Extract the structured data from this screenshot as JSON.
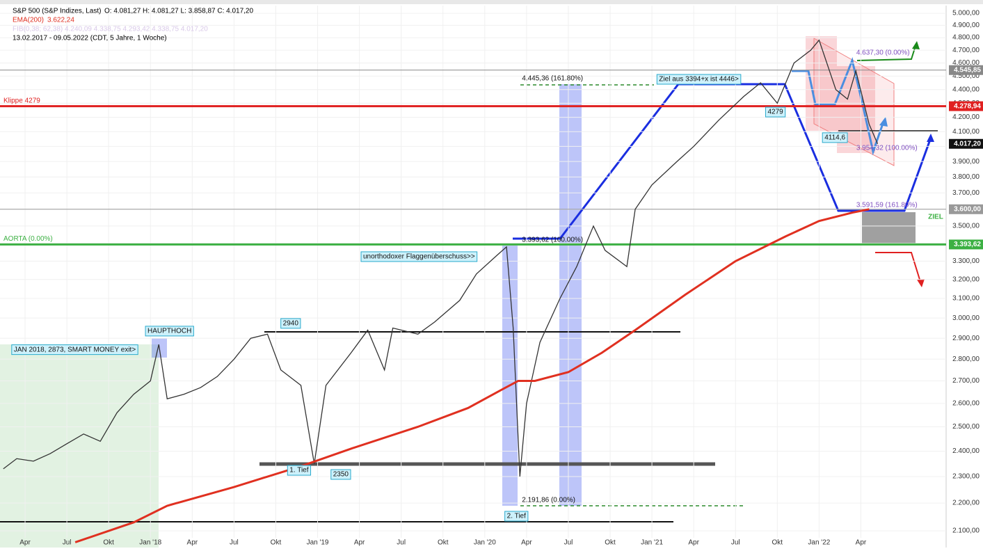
{
  "chart_data": {
    "type": "line",
    "log_scale": true,
    "grid": true,
    "header": {
      "ohlc": "O: 4.081,27  H: 4.081,27  L: 3.858,87  C: 4.017,20",
      "ema_value": "3.622,24",
      "fib": "FIB(0,38; 62,38) 4.240,09  4.338,75  4.293,42  4.338,75  4.017,20",
      "range": "13.02.2017 - 09.05.2022  (CDT, 5 Jahre, 1 Woche)"
    },
    "xlim": [
      2017.1,
      2022.76
    ],
    "ylim": [
      2042,
      5065
    ],
    "xticks": [
      {
        "value": 2017.25,
        "label": "Apr"
      },
      {
        "value": 2017.5,
        "label": "Jul"
      },
      {
        "value": 2017.75,
        "label": "Okt"
      },
      {
        "value": 2018.0,
        "label": "Jan '18"
      },
      {
        "value": 2018.25,
        "label": "Apr"
      },
      {
        "value": 2018.5,
        "label": "Jul"
      },
      {
        "value": 2018.75,
        "label": "Okt"
      },
      {
        "value": 2019.0,
        "label": "Jan '19"
      },
      {
        "value": 2019.25,
        "label": "Apr"
      },
      {
        "value": 2019.5,
        "label": "Jul"
      },
      {
        "value": 2019.75,
        "label": "Okt"
      },
      {
        "value": 2020.0,
        "label": "Jan '20"
      },
      {
        "value": 2020.25,
        "label": "Apr"
      },
      {
        "value": 2020.5,
        "label": "Jul"
      },
      {
        "value": 2020.75,
        "label": "Okt"
      },
      {
        "value": 2021.0,
        "label": "Jan '21"
      },
      {
        "value": 2021.25,
        "label": "Apr"
      },
      {
        "value": 2021.5,
        "label": "Jul"
      },
      {
        "value": 2021.75,
        "label": "Okt"
      },
      {
        "value": 2022.0,
        "label": "Jan '22"
      },
      {
        "value": 2022.25,
        "label": "Apr"
      }
    ],
    "yticks": [
      {
        "value": 2100,
        "label": "2.100,00"
      },
      {
        "value": 2200,
        "label": "2.200,00"
      },
      {
        "value": 2300,
        "label": "2.300,00"
      },
      {
        "value": 2400,
        "label": "2.400,00"
      },
      {
        "value": 2500,
        "label": "2.500,00"
      },
      {
        "value": 2600,
        "label": "2.600,00"
      },
      {
        "value": 2700,
        "label": "2.700,00"
      },
      {
        "value": 2800,
        "label": "2.800,00"
      },
      {
        "value": 2900,
        "label": "2.900,00"
      },
      {
        "value": 3000,
        "label": "3.000,00"
      },
      {
        "value": 3100,
        "label": "3.100,00"
      },
      {
        "value": 3200,
        "label": "3.200,00"
      },
      {
        "value": 3300,
        "label": "3.300,00"
      },
      {
        "value": 3400,
        "label": "3.400,00"
      },
      {
        "value": 3500,
        "label": "3.500,00"
      },
      {
        "value": 3600,
        "label": "3.600,00"
      },
      {
        "value": 3700,
        "label": "3.700,00"
      },
      {
        "value": 3800,
        "label": "3.800,00"
      },
      {
        "value": 3900,
        "label": "3.900,00"
      },
      {
        "value": 4000,
        "label": "4.000,00"
      },
      {
        "value": 4100,
        "label": "4.100,00"
      },
      {
        "value": 4200,
        "label": "4.200,00"
      },
      {
        "value": 4300,
        "label": "4.300,00"
      },
      {
        "value": 4400,
        "label": "4.400,00"
      },
      {
        "value": 4500,
        "label": "4.500,00"
      },
      {
        "value": 4600,
        "label": "4.600,00"
      },
      {
        "value": 4700,
        "label": "4.700,00"
      },
      {
        "value": 4800,
        "label": "4.800,00"
      },
      {
        "value": 4900,
        "label": "4.900,00"
      },
      {
        "value": 5000,
        "label": "5.000,00"
      }
    ],
    "series": [
      {
        "name": "S&P 500 (S&P Indizes, Last)",
        "color": "#333333",
        "x": [
          2017.12,
          2017.2,
          2017.3,
          2017.4,
          2017.5,
          2017.6,
          2017.7,
          2017.8,
          2017.9,
          2018.0,
          2018.05,
          2018.1,
          2018.2,
          2018.3,
          2018.4,
          2018.5,
          2018.6,
          2018.7,
          2018.78,
          2018.9,
          2018.98,
          2019.05,
          2019.2,
          2019.3,
          2019.4,
          2019.45,
          2019.6,
          2019.7,
          2019.85,
          2019.95,
          2020.07,
          2020.13,
          2020.17,
          2020.21,
          2020.25,
          2020.33,
          2020.45,
          2020.55,
          2020.65,
          2020.72,
          2020.85,
          2020.9,
          2021.0,
          2021.15,
          2021.25,
          2021.4,
          2021.55,
          2021.65,
          2021.75,
          2021.85,
          2021.95,
          2022.0,
          2022.1,
          2022.17,
          2022.22,
          2022.3,
          2022.35
        ],
        "values": [
          2330,
          2370,
          2360,
          2390,
          2430,
          2470,
          2440,
          2560,
          2640,
          2700,
          2870,
          2620,
          2640,
          2670,
          2720,
          2800,
          2900,
          2920,
          2750,
          2680,
          2350,
          2680,
          2830,
          2940,
          2750,
          2950,
          2920,
          2980,
          3090,
          3230,
          3330,
          3380,
          2950,
          2300,
          2600,
          2880,
          3100,
          3270,
          3500,
          3360,
          3270,
          3600,
          3750,
          3900,
          4000,
          4180,
          4350,
          4450,
          4300,
          4600,
          4700,
          4780,
          4400,
          4330,
          4540,
          4150,
          4017
        ]
      },
      {
        "name": "EMA(200)",
        "color": "#e03020",
        "x": [
          2017.55,
          2017.9,
          2018.1,
          2018.5,
          2018.9,
          2019.2,
          2019.6,
          2019.9,
          2020.1,
          2020.2,
          2020.3,
          2020.5,
          2020.7,
          2020.9,
          2021.2,
          2021.5,
          2021.8,
          2022.0,
          2022.2,
          2022.3
        ],
        "values": [
          2060,
          2130,
          2190,
          2260,
          2340,
          2410,
          2500,
          2580,
          2660,
          2700,
          2700,
          2740,
          2830,
          2940,
          3120,
          3300,
          3440,
          3530,
          3580,
          3600
        ]
      }
    ],
    "hlines": [
      {
        "value": 4278.94,
        "axis_label": "4.278,94",
        "label": "Klippe 4279",
        "color": "#e02020"
      },
      {
        "value": 3393.62,
        "axis_label": "3.393,62",
        "label": "AORTA (0.00%)",
        "color": "#3cb043"
      },
      {
        "value": 4545.85,
        "axis_label": "4.545,85",
        "color": "#888888"
      },
      {
        "value": 3600,
        "axis_label": "3.600,00",
        "color": "#999999"
      }
    ],
    "last_price": {
      "value": 4017.2,
      "label": "4.017,20"
    },
    "annotations": [
      {
        "text": "JAN 2018, 2873, SMART MONEY exit>",
        "x": 2017.17,
        "y": 2845,
        "box": true
      },
      {
        "text": "HAUPTHOCH",
        "x": 2017.97,
        "y": 2935,
        "box": true
      },
      {
        "text": "2940",
        "x": 2018.78,
        "y": 2973,
        "box": true
      },
      {
        "text": "1. Tief",
        "x": 2018.82,
        "y": 2324,
        "box": true
      },
      {
        "text": "2350",
        "x": 2019.08,
        "y": 2308,
        "box": true
      },
      {
        "text": "2. Tief",
        "x": 2020.12,
        "y": 2152,
        "box": true
      },
      {
        "text": "2.191,86 (0.00%)",
        "x": 2020.21,
        "y": 2211
      },
      {
        "text": "unorthodoxer Flaggenüberschuss>>",
        "x": 2019.26,
        "y": 3325,
        "box": true
      },
      {
        "text": "3.393,62 (100.00%)",
        "x": 2020.21,
        "y": 3419
      },
      {
        "text": "4.445,36 (161.80%)",
        "x": 2020.21,
        "y": 4482
      },
      {
        "text": "Ziel aus 3394+x ist 4446>",
        "x": 2021.03,
        "y": 4476,
        "box": true
      },
      {
        "text": "4279",
        "x": 2021.68,
        "y": 4237,
        "box": true
      },
      {
        "text": "4114,6",
        "x": 2022.02,
        "y": 4059,
        "box": true
      },
      {
        "text": "3.954,32 (100.00%)",
        "x": 2022.21,
        "y": 3988,
        "color": "#8050c0"
      },
      {
        "text": "4.637,30 (0.00%)",
        "x": 2022.21,
        "y": 4679,
        "color": "#8050c0"
      },
      {
        "text": "3.591,59 (161.80%)",
        "x": 2022.21,
        "y": 3625,
        "color": "#8050c0"
      },
      {
        "text": "ZIEL",
        "x": 2022.64,
        "y": 3553,
        "color": "#3cb043",
        "bold": true
      }
    ]
  }
}
